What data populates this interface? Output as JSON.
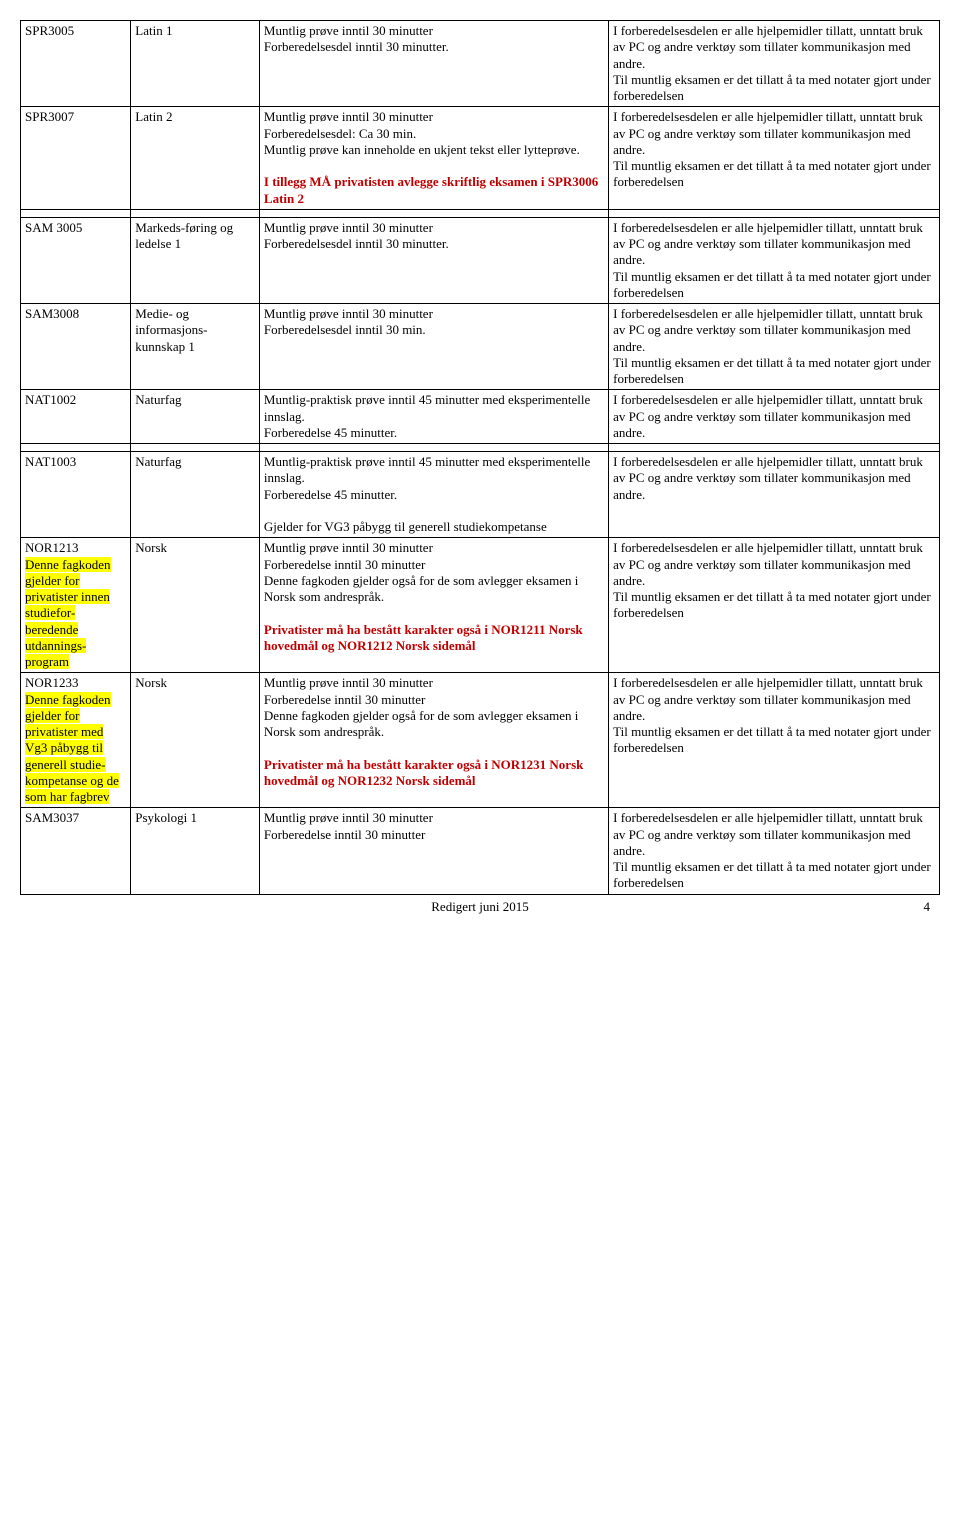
{
  "footer": {
    "text": "Redigert juni 2015",
    "page": "4"
  },
  "hjelpemidler_full": "I forberedelsesdelen er alle hjelpemidler tillatt, unntatt bruk av PC og andre verktøy som tillater kommunikasjon med andre.\nTil muntlig eksamen er det tillatt å ta med notater gjort under forberedelsen",
  "hjelpemidler_short": "I forberedelsesdelen er alle hjelpemidler tillatt, unntatt bruk av PC og andre verktøy som tillater kommunikasjon med andre.",
  "rows": {
    "spr3005": {
      "code": "SPR3005",
      "subject": "Latin 1",
      "desc": "Muntlig prøve inntil 30 minutter\nForberedelsesdel inntil 30 minutter."
    },
    "spr3007": {
      "code": "SPR3007",
      "subject": "Latin 2",
      "desc_main": "Muntlig prøve inntil 30 minutter\nForberedelsesdel: Ca 30 min.\nMuntlig prøve kan inneholde en ukjent tekst eller lytteprøve.",
      "desc_red": "I tillegg MÅ privatisten avlegge skriftlig eksamen i SPR3006 Latin 2"
    },
    "sam3005": {
      "code": "SAM 3005",
      "subject": "Markeds-føring og ledelse 1",
      "desc": "Muntlig prøve inntil 30 minutter\nForberedelsesdel inntil 30 minutter."
    },
    "sam3008": {
      "code": "SAM3008",
      "subject": "Medie- og informasjons-kunnskap  1",
      "desc": "Muntlig prøve inntil 30 minutter\nForberedelsesdel inntil 30 min."
    },
    "nat1002": {
      "code": "NAT1002",
      "subject": "Naturfag",
      "desc": "Muntlig-praktisk prøve inntil 45 minutter med eksperimentelle innslag.\nForberedelse 45 minutter."
    },
    "nat1003": {
      "code": "NAT1003",
      "subject": "Naturfag",
      "desc_main": "Muntlig-praktisk prøve inntil 45 minutter med eksperimentelle innslag.\nForberedelse 45 minutter.",
      "desc_extra": "Gjelder for VG3 påbygg til generell studiekompetanse"
    },
    "nor1213": {
      "code": "NOR1213",
      "code_note": "Denne fagkoden gjelder for privatister innen studiefor-beredende utdannings-program",
      "subject": "Norsk",
      "desc_main": "Muntlig prøve inntil 30 minutter\nForberedelse inntil 30 minutter\nDenne fagkoden gjelder også for de som avlegger eksamen i Norsk som andrespråk.",
      "desc_red": "Privatister må ha bestått karakter også i NOR1211 Norsk hovedmål og NOR1212 Norsk sidemål"
    },
    "nor1233": {
      "code": "NOR1233",
      "code_note": "Denne fagkoden gjelder for privatister med Vg3 påbygg til generell studie-kompetanse og de som har fagbrev",
      "subject": "Norsk",
      "desc_main": "Muntlig prøve inntil 30 minutter\nForberedelse inntil 30 minutter\nDenne fagkoden gjelder også for de som avlegger eksamen i Norsk som andrespråk.",
      "desc_red": "Privatister må ha bestått karakter også i NOR1231 Norsk hovedmål og NOR1232 Norsk sidemål"
    },
    "sam3037": {
      "code": "SAM3037",
      "subject": "Psykologi 1",
      "desc": "Muntlig prøve inntil 30 minutter\nForberedelse inntil 30 minutter"
    }
  }
}
